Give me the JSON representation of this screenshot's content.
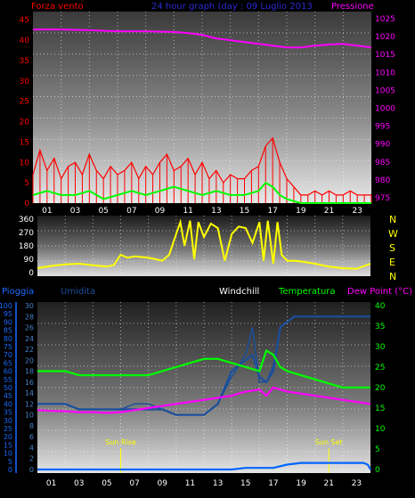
{
  "header": {
    "left_label": "Forza vento",
    "center_label": "24 hour graph (day : 09 Luglio 2013",
    "right_label": "Pressione"
  },
  "legend": {
    "pioggia": "Pioggia",
    "umidita": "Umidita",
    "windchill": "Windchill",
    "temperatura": "Temperatura",
    "dewpoint": "Dew Point (°C)"
  },
  "direction_labels": [
    "N",
    "W",
    "S",
    "E",
    "N"
  ],
  "annotations": {
    "sunrise": "Sun Rise",
    "sunset": "Sun Set"
  },
  "colors": {
    "wind": "#ff0000",
    "gust_avg": "#00ff00",
    "pressure": "#ff00ff",
    "direction": "#ffff00",
    "rain": "#0066ff",
    "humidity": "#1a4f9c",
    "windchill": "#1a4f9c",
    "temperature": "#00ff00",
    "dewpoint": "#ff00ff",
    "sun": "#ffff00"
  },
  "chart_data": [
    {
      "type": "line",
      "title": "",
      "x_ticks": [
        "01",
        "03",
        "05",
        "07",
        "09",
        "11",
        "13",
        "15",
        "17",
        "19",
        "21",
        "23"
      ],
      "xlim": [
        0,
        24
      ],
      "left_axis": {
        "label": "Forza vento",
        "ticks": [
          0,
          5,
          10,
          15,
          20,
          25,
          30,
          35,
          40,
          45
        ]
      },
      "right_axis": {
        "label": "Pressione",
        "ticks": [
          975,
          980,
          985,
          990,
          995,
          1000,
          1005,
          1010,
          1015,
          1020,
          1025
        ]
      },
      "series": [
        {
          "name": "Forza vento",
          "axis": "left",
          "x": [
            0,
            0.5,
            1,
            1.5,
            2,
            2.5,
            3,
            3.5,
            4,
            4.5,
            5,
            5.5,
            6,
            6.5,
            7,
            7.5,
            8,
            8.5,
            9,
            9.5,
            10,
            10.5,
            11,
            11.5,
            12,
            12.5,
            13,
            13.5,
            14,
            14.5,
            15,
            15.5,
            16,
            16.5,
            17,
            17.5,
            18,
            18.5,
            19,
            19.5,
            20,
            20.5,
            21,
            21.5,
            22,
            22.5,
            23,
            23.5,
            24
          ],
          "y": [
            7,
            13,
            8,
            11,
            6,
            9,
            10,
            7,
            12,
            8,
            6,
            9,
            7,
            8,
            10,
            6,
            9,
            7,
            10,
            12,
            8,
            9,
            11,
            7,
            10,
            6,
            8,
            5,
            7,
            6,
            6,
            8,
            9,
            14,
            16,
            10,
            6,
            4,
            2,
            2,
            3,
            2,
            3,
            2,
            2,
            3,
            2,
            2,
            2
          ]
        },
        {
          "name": "Media",
          "axis": "left",
          "x": [
            0,
            1,
            2,
            3,
            4,
            5,
            6,
            7,
            8,
            9,
            10,
            11,
            12,
            13,
            14,
            15,
            16,
            16.5,
            17,
            17.5,
            18,
            19,
            20,
            21,
            22,
            23,
            24
          ],
          "y": [
            2,
            3,
            2,
            2,
            3,
            1,
            2,
            3,
            2,
            3,
            4,
            3,
            2,
            3,
            2,
            2,
            3,
            5,
            4,
            2,
            1,
            0,
            0,
            0,
            0,
            0,
            0
          ]
        },
        {
          "name": "Pressione",
          "axis": "right",
          "x": [
            0,
            2,
            4,
            6,
            8,
            10,
            11,
            12,
            13,
            14,
            15,
            16,
            17,
            18,
            19,
            20,
            21,
            22,
            23,
            24
          ],
          "y": [
            1022,
            1022,
            1021.8,
            1021.5,
            1021.5,
            1021.3,
            1021,
            1020.5,
            1019.5,
            1019,
            1018.5,
            1018,
            1017.5,
            1017,
            1017,
            1017.5,
            1017.8,
            1018,
            1017.5,
            1017
          ]
        }
      ]
    },
    {
      "type": "line",
      "title": "",
      "xlim": [
        0,
        24
      ],
      "y_axis": {
        "ticks": [
          0,
          90,
          180,
          270,
          360
        ]
      },
      "series": [
        {
          "name": "Direzione",
          "x": [
            0,
            1,
            2,
            3,
            4,
            5,
            5.5,
            6,
            6.5,
            7,
            8,
            9,
            9.5,
            10,
            10.3,
            10.6,
            11,
            11.3,
            11.6,
            12,
            12.5,
            13,
            13.5,
            14,
            14.5,
            15,
            15.5,
            16,
            16.3,
            16.6,
            17,
            17.3,
            17.6,
            18,
            18.5,
            19,
            20,
            21,
            22,
            23,
            24
          ],
          "y": [
            30,
            45,
            55,
            60,
            50,
            40,
            50,
            120,
            100,
            110,
            100,
            80,
            120,
            260,
            340,
            180,
            350,
            90,
            340,
            240,
            330,
            300,
            80,
            260,
            310,
            300,
            200,
            340,
            80,
            350,
            60,
            340,
            120,
            80,
            80,
            75,
            60,
            40,
            30,
            25,
            60
          ]
        }
      ]
    },
    {
      "type": "line",
      "title": "",
      "x_ticks": [
        "01",
        "03",
        "05",
        "07",
        "09",
        "11",
        "13",
        "15",
        "17",
        "19",
        "21",
        "23"
      ],
      "xlim": [
        0,
        24
      ],
      "axes": {
        "pioggia": [
          0,
          5,
          10,
          15,
          20,
          25,
          30,
          35,
          40,
          45,
          50,
          55,
          60,
          65,
          70,
          75,
          80,
          85,
          90,
          95,
          100
        ],
        "umidita": [
          0,
          2,
          4,
          6,
          8,
          10,
          12,
          14,
          16,
          18,
          20,
          22,
          24,
          26,
          28,
          30
        ],
        "temperatura": [
          0,
          5,
          10,
          15,
          20,
          25,
          30,
          35,
          40
        ]
      },
      "series": [
        {
          "name": "Umidita",
          "axis": "umidita",
          "x": [
            0,
            1,
            2,
            3,
            4,
            5,
            6,
            7,
            8,
            9,
            10,
            11,
            12,
            13,
            14,
            15,
            15.5,
            16,
            16.5,
            17,
            17.5,
            18,
            18.5,
            19,
            20,
            21,
            22,
            23,
            24
          ],
          "y": [
            12,
            12,
            12,
            11,
            11,
            11,
            11,
            11,
            11,
            11,
            10,
            10,
            10,
            12,
            18,
            20,
            21,
            17,
            16,
            18,
            26,
            27,
            28,
            28,
            28,
            28,
            28,
            28,
            28
          ]
        },
        {
          "name": "Windchill",
          "axis": "umidita",
          "x": [
            0,
            1,
            2,
            3,
            4,
            5,
            6,
            7,
            8,
            9,
            10,
            11,
            12,
            13,
            14,
            15,
            15.5,
            16,
            16.5,
            17,
            17.5,
            18,
            18.5,
            19,
            20,
            21,
            22,
            23,
            24
          ],
          "y": [
            12,
            12,
            12,
            11,
            11,
            11,
            11,
            12,
            12,
            11,
            10,
            10,
            10,
            12,
            17,
            21,
            26,
            16,
            16,
            19,
            26,
            27,
            28,
            28,
            28,
            28,
            28,
            28,
            28
          ]
        },
        {
          "name": "Temperatura",
          "axis": "temperatura",
          "x": [
            0,
            1,
            2,
            3,
            4,
            5,
            6,
            7,
            8,
            9,
            10,
            11,
            12,
            13,
            14,
            15,
            16,
            16.5,
            17,
            17.5,
            18,
            19,
            20,
            21,
            22,
            23,
            24
          ],
          "y": [
            24,
            24,
            24,
            23,
            23,
            23,
            23,
            23,
            23,
            24,
            25,
            26,
            27,
            27,
            26,
            25,
            24,
            29,
            28,
            25,
            24,
            23,
            22,
            21,
            20,
            20,
            20
          ]
        },
        {
          "name": "Dew Point (°C)",
          "axis": "temperatura",
          "x": [
            0,
            1,
            2,
            3,
            4,
            5,
            6,
            7,
            8,
            9,
            10,
            11,
            12,
            13,
            14,
            15,
            16,
            16.5,
            17,
            17.5,
            18,
            19,
            20,
            21,
            22,
            23,
            24
          ],
          "y": [
            14.5,
            14.3,
            14.2,
            14,
            14,
            13.8,
            14,
            14.5,
            15,
            15.5,
            16,
            16.5,
            17,
            17.5,
            18,
            19,
            19.5,
            18,
            20,
            19.5,
            19,
            18.5,
            18,
            17.5,
            17,
            16.5,
            16
          ]
        },
        {
          "name": "Pioggia",
          "axis": "pioggia",
          "x": [
            0,
            14,
            15,
            16,
            17,
            18,
            19,
            20,
            21,
            22,
            23,
            23.5,
            23.8,
            24
          ],
          "y": [
            0,
            0,
            1,
            1,
            1,
            3,
            4,
            4,
            4,
            4,
            4,
            4,
            3,
            0
          ]
        }
      ],
      "markers": [
        {
          "label": "Sun Rise",
          "x": 6
        },
        {
          "label": "Sun Set",
          "x": 21
        }
      ]
    }
  ]
}
